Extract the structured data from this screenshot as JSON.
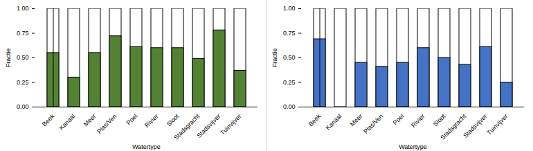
{
  "chart_data": [
    {
      "type": "bar",
      "x_label": "Watertype",
      "y_label": "Fractie",
      "categories": [
        "Beek",
        "Kanaal",
        "Meer",
        "Plas/Ven",
        "Poel",
        "Rivier",
        "Sloot",
        "Stadsgracht",
        "Stadsvijver",
        "Tuinvijver"
      ],
      "values": [
        0.55,
        0.3,
        0.55,
        0.72,
        0.61,
        0.6,
        0.6,
        0.49,
        0.78,
        0.37
      ],
      "color": "#548235",
      "ylim": [
        0,
        1
      ],
      "yticks": [
        {
          "value": 0,
          "label": "0.00"
        },
        {
          "value": 0.25,
          "label": "0.25"
        },
        {
          "value": 0.5,
          "label": "0.50"
        },
        {
          "value": 0.75,
          "label": "0.75"
        },
        {
          "value": 1,
          "label": "1.00"
        }
      ],
      "grid": false
    },
    {
      "type": "bar",
      "x_label": "Watertype",
      "y_label": "Fractie",
      "categories": [
        "Beek",
        "Kanaal",
        "Meer",
        "Plas/Ven",
        "Poel",
        "Rivier",
        "Sloot",
        "Stadsgracht",
        "Stadsvijver",
        "Tuinvijver"
      ],
      "values": [
        0.69,
        0,
        0.45,
        0.41,
        0.45,
        0.6,
        0.5,
        0.43,
        0.61,
        0.25
      ],
      "color": "#4472c4",
      "ylim": [
        0,
        1
      ],
      "yticks": [
        {
          "value": 0,
          "label": "0.00"
        },
        {
          "value": 0.25,
          "label": "0.25"
        },
        {
          "value": 0.5,
          "label": "0.50"
        },
        {
          "value": 0.75,
          "label": "0.75"
        },
        {
          "value": 1,
          "label": "1.00"
        }
      ],
      "grid": false
    }
  ]
}
